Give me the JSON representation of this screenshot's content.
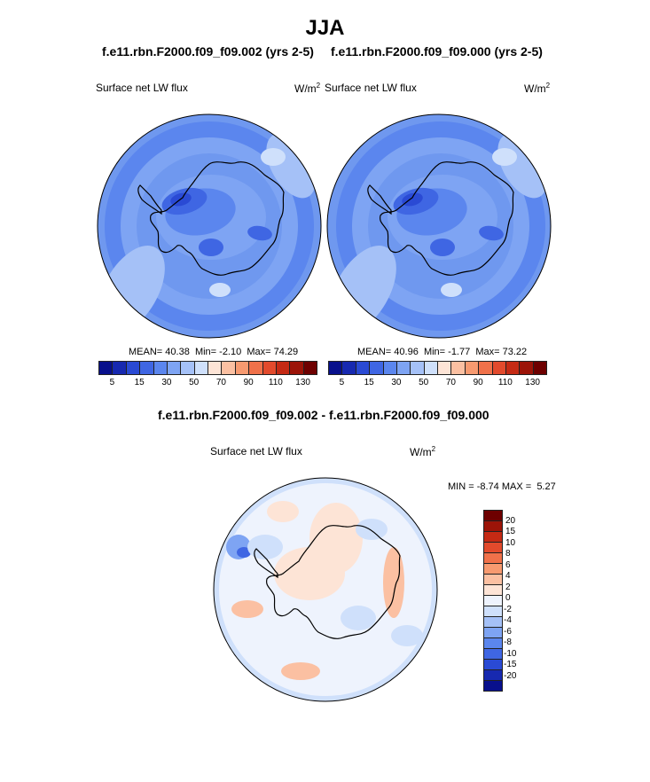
{
  "title": "JJA",
  "chart_data": [
    {
      "type": "heatmap",
      "projection": "south polar stereographic",
      "case_title": "f.e11.rbn.F2000.f09_f09.002 (yrs 2-5)",
      "variable": "Surface net LW flux",
      "units": "W/m",
      "units_exp": "2",
      "stats": {
        "mean_label": "MEAN=",
        "mean": "40.38",
        "min_label": "Min=",
        "min": "-2.10",
        "max_label": "Max=",
        "max": "74.29"
      },
      "colorbar_ticks": [
        "5",
        "15",
        "30",
        "50",
        "70",
        "90",
        "110",
        "130"
      ]
    },
    {
      "type": "heatmap",
      "projection": "south polar stereographic",
      "case_title": "f.e11.rbn.F2000.f09_f09.000 (yrs 2-5)",
      "variable": "Surface net LW flux",
      "units": "W/m",
      "units_exp": "2",
      "stats": {
        "mean_label": "MEAN=",
        "mean": "40.96",
        "min_label": "Min=",
        "min": "-1.77",
        "max_label": "Max=",
        "max": "73.22"
      },
      "colorbar_ticks": [
        "5",
        "15",
        "30",
        "50",
        "70",
        "90",
        "110",
        "130"
      ]
    },
    {
      "type": "heatmap",
      "projection": "south polar stereographic",
      "case_title": "f.e11.rbn.F2000.f09_f09.002 - f.e11.rbn.F2000.f09_f09.000",
      "variable": "Surface net LW flux",
      "units": "W/m",
      "units_exp": "2",
      "stats": {
        "min_label": "MIN =",
        "min": "-8.74",
        "max_label": "MAX =",
        "max": "5.27"
      },
      "colorbar_ticks": [
        "20",
        "15",
        "10",
        "8",
        "6",
        "4",
        "2",
        "0",
        "-2",
        "-4",
        "-6",
        "-8",
        "-10",
        "-15",
        "-20"
      ]
    }
  ],
  "colors": {
    "abs_scale": [
      "#08108c",
      "#1729b0",
      "#2a4ad4",
      "#3f66e3",
      "#5b86ee",
      "#7ea4f3",
      "#a5c1f7",
      "#cfe0fb",
      "#fde4d6",
      "#fbc0a2",
      "#f79a70",
      "#f0714a",
      "#e24a2c",
      "#c52a14",
      "#9c1408",
      "#6e0000"
    ],
    "diff_scale": [
      "#6e0000",
      "#9c1408",
      "#c52a14",
      "#e24a2c",
      "#f0714a",
      "#f79a70",
      "#fbc0a2",
      "#fde4d6",
      "#eef3fd",
      "#cfe0fb",
      "#a5c1f7",
      "#7ea4f3",
      "#5b86ee",
      "#3f66e3",
      "#2a4ad4",
      "#1729b0",
      "#08108c"
    ],
    "abs_base": "#6f98ef",
    "diff_base": "#cfe0fb"
  }
}
